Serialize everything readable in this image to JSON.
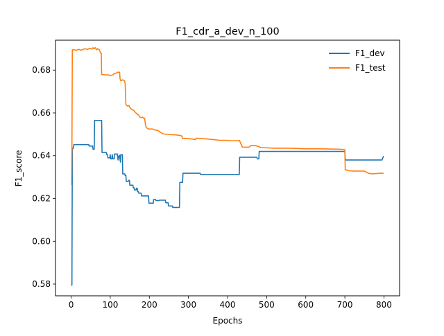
{
  "chart_data": {
    "type": "line",
    "title": "F1_cdr_a_dev_n_100",
    "xlabel": "Epochs",
    "ylabel": "F1_score",
    "xlim": [
      -40,
      840
    ],
    "ylim": [
      0.5745,
      0.694
    ],
    "xticks": [
      0,
      100,
      200,
      300,
      400,
      500,
      600,
      700,
      800
    ],
    "yticks": [
      0.58,
      0.6,
      0.62,
      0.64,
      0.66,
      0.68
    ],
    "ytick_labels": [
      "0.58",
      "0.60",
      "0.62",
      "0.64",
      "0.66",
      "0.68"
    ],
    "legend_position": "upper right",
    "grid": false,
    "series": [
      {
        "name": "F1_dev",
        "color": "#1f77b4",
        "points": [
          [
            0,
            0.5795
          ],
          [
            2,
            0.5795
          ],
          [
            3,
            0.6435
          ],
          [
            6,
            0.6435
          ],
          [
            7,
            0.6452
          ],
          [
            45,
            0.6452
          ],
          [
            46,
            0.6445
          ],
          [
            55,
            0.6445
          ],
          [
            56,
            0.643
          ],
          [
            59,
            0.643
          ],
          [
            60,
            0.6565
          ],
          [
            78,
            0.6565
          ],
          [
            79,
            0.6415
          ],
          [
            90,
            0.6415
          ],
          [
            91,
            0.6405
          ],
          [
            93,
            0.6405
          ],
          [
            94,
            0.639
          ],
          [
            99,
            0.639
          ],
          [
            100,
            0.6405
          ],
          [
            101,
            0.6385
          ],
          [
            104,
            0.6385
          ],
          [
            105,
            0.6405
          ],
          [
            107,
            0.6385
          ],
          [
            110,
            0.6385
          ],
          [
            111,
            0.6408
          ],
          [
            118,
            0.6408
          ],
          [
            119,
            0.6395
          ],
          [
            120,
            0.638
          ],
          [
            122,
            0.6398
          ],
          [
            124,
            0.6402
          ],
          [
            126,
            0.637
          ],
          [
            127,
            0.6405
          ],
          [
            131,
            0.6405
          ],
          [
            132,
            0.6315
          ],
          [
            137,
            0.6315
          ],
          [
            138,
            0.6308
          ],
          [
            140,
            0.6308
          ],
          [
            141,
            0.628
          ],
          [
            146,
            0.628
          ],
          [
            147,
            0.6285
          ],
          [
            149,
            0.6285
          ],
          [
            150,
            0.6262
          ],
          [
            158,
            0.6262
          ],
          [
            159,
            0.625
          ],
          [
            161,
            0.625
          ],
          [
            162,
            0.624
          ],
          [
            166,
            0.624
          ],
          [
            167,
            0.6248
          ],
          [
            169,
            0.6248
          ],
          [
            170,
            0.6232
          ],
          [
            172,
            0.6232
          ],
          [
            173,
            0.6225
          ],
          [
            179,
            0.6225
          ],
          [
            180,
            0.6212
          ],
          [
            198,
            0.6212
          ],
          [
            199,
            0.6178
          ],
          [
            210,
            0.6178
          ],
          [
            211,
            0.6195
          ],
          [
            216,
            0.6195
          ],
          [
            217,
            0.619
          ],
          [
            225,
            0.619
          ],
          [
            226,
            0.6192
          ],
          [
            241,
            0.6192
          ],
          [
            242,
            0.618
          ],
          [
            248,
            0.618
          ],
          [
            249,
            0.6165
          ],
          [
            259,
            0.6165
          ],
          [
            260,
            0.6158
          ],
          [
            277,
            0.6158
          ],
          [
            278,
            0.6275
          ],
          [
            285,
            0.6275
          ],
          [
            286,
            0.6318
          ],
          [
            330,
            0.6318
          ],
          [
            331,
            0.6312
          ],
          [
            430,
            0.6312
          ],
          [
            431,
            0.6393
          ],
          [
            475,
            0.6393
          ],
          [
            476,
            0.6385
          ],
          [
            480,
            0.6385
          ],
          [
            481,
            0.642
          ],
          [
            700,
            0.642
          ],
          [
            701,
            0.638
          ],
          [
            795,
            0.638
          ],
          [
            799,
            0.6398
          ]
        ]
      },
      {
        "name": "F1_test",
        "color": "#ff7f0e",
        "points": [
          [
            0,
            0.6265
          ],
          [
            1,
            0.6265
          ],
          [
            2,
            0.643
          ],
          [
            3,
            0.6895
          ],
          [
            10,
            0.6895
          ],
          [
            12,
            0.6892
          ],
          [
            20,
            0.6897
          ],
          [
            25,
            0.6893
          ],
          [
            35,
            0.69
          ],
          [
            42,
            0.6897
          ],
          [
            48,
            0.6902
          ],
          [
            52,
            0.6898
          ],
          [
            56,
            0.6905
          ],
          [
            58,
            0.69
          ],
          [
            62,
            0.6905
          ],
          [
            65,
            0.6895
          ],
          [
            68,
            0.69
          ],
          [
            72,
            0.6895
          ],
          [
            75,
            0.688
          ],
          [
            77,
            0.688
          ],
          [
            78,
            0.678
          ],
          [
            85,
            0.6778
          ],
          [
            95,
            0.6778
          ],
          [
            100,
            0.6775
          ],
          [
            108,
            0.6778
          ],
          [
            110,
            0.6785
          ],
          [
            115,
            0.6785
          ],
          [
            118,
            0.679
          ],
          [
            124,
            0.679
          ],
          [
            125,
            0.676
          ],
          [
            127,
            0.675
          ],
          [
            132,
            0.6755
          ],
          [
            136,
            0.675
          ],
          [
            138,
            0.674
          ],
          [
            140,
            0.664
          ],
          [
            144,
            0.6632
          ],
          [
            148,
            0.6635
          ],
          [
            150,
            0.6625
          ],
          [
            153,
            0.662
          ],
          [
            156,
            0.6615
          ],
          [
            160,
            0.6612
          ],
          [
            163,
            0.6605
          ],
          [
            170,
            0.6592
          ],
          [
            173,
            0.659
          ],
          [
            176,
            0.658
          ],
          [
            179,
            0.6578
          ],
          [
            183,
            0.658
          ],
          [
            185,
            0.6575
          ],
          [
            188,
            0.6575
          ],
          [
            190,
            0.6545
          ],
          [
            192,
            0.6532
          ],
          [
            197,
            0.6525
          ],
          [
            205,
            0.6525
          ],
          [
            208,
            0.6525
          ],
          [
            214,
            0.652
          ],
          [
            222,
            0.6518
          ],
          [
            226,
            0.6512
          ],
          [
            230,
            0.6508
          ],
          [
            235,
            0.6502
          ],
          [
            245,
            0.65
          ],
          [
            258,
            0.6498
          ],
          [
            270,
            0.6497
          ],
          [
            275,
            0.6495
          ],
          [
            279,
            0.6495
          ],
          [
            283,
            0.6492
          ],
          [
            285,
            0.648
          ],
          [
            300,
            0.648
          ],
          [
            310,
            0.6478
          ],
          [
            318,
            0.6475
          ],
          [
            320,
            0.6482
          ],
          [
            335,
            0.648
          ],
          [
            350,
            0.6478
          ],
          [
            365,
            0.6475
          ],
          [
            380,
            0.6472
          ],
          [
            395,
            0.6472
          ],
          [
            410,
            0.647
          ],
          [
            425,
            0.647
          ],
          [
            430,
            0.6472
          ],
          [
            432,
            0.6465
          ],
          [
            436,
            0.6448
          ],
          [
            438,
            0.644
          ],
          [
            455,
            0.644
          ],
          [
            460,
            0.6448
          ],
          [
            470,
            0.6448
          ],
          [
            480,
            0.6442
          ],
          [
            485,
            0.6438
          ],
          [
            520,
            0.6435
          ],
          [
            560,
            0.6435
          ],
          [
            600,
            0.6432
          ],
          [
            640,
            0.6432
          ],
          [
            690,
            0.643
          ],
          [
            700,
            0.6428
          ],
          [
            701,
            0.6335
          ],
          [
            710,
            0.633
          ],
          [
            720,
            0.6328
          ],
          [
            735,
            0.6328
          ],
          [
            750,
            0.6328
          ],
          [
            760,
            0.6318
          ],
          [
            770,
            0.6315
          ],
          [
            790,
            0.6318
          ],
          [
            799,
            0.6318
          ]
        ]
      }
    ]
  }
}
